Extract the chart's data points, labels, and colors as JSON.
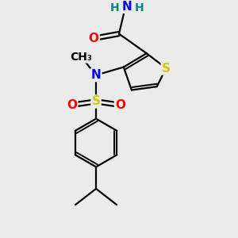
{
  "background_color": "#ebebeb",
  "bond_color": "#000000",
  "atom_colors": {
    "S": "#cccc00",
    "N": "#0000ff",
    "O": "#ff0000",
    "H": "#008888",
    "C": "#000000"
  },
  "bond_width": 1.6,
  "font_size_atoms": 11
}
